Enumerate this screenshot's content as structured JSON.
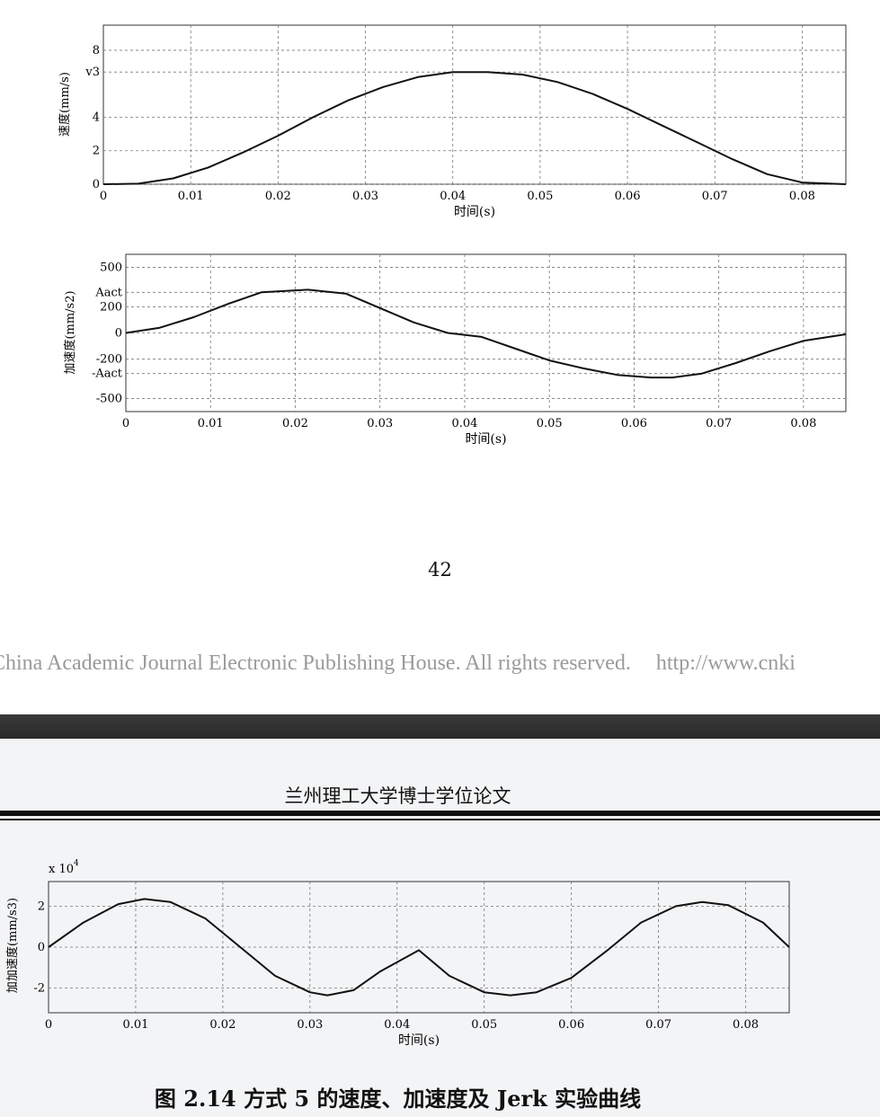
{
  "page_number": "42",
  "footer": {
    "copyright": "China Academic Journal Electronic Publishing House. All rights reserved.",
    "url": "http://www.cnki"
  },
  "header": {
    "title": "兰州理工大学博士学位论文"
  },
  "caption": "图 2.14  方式 5 的速度、加速度及 Jerk 实验曲线",
  "chart_data": [
    {
      "type": "line",
      "title": "",
      "xlabel": "时间(s)",
      "ylabel": "速度(mm/s)",
      "xlim": [
        0,
        0.085
      ],
      "ylim": [
        0,
        9.5
      ],
      "x_ticks": [
        0,
        0.01,
        0.02,
        0.03,
        0.04,
        0.05,
        0.06,
        0.07,
        0.08
      ],
      "x_tick_labels": [
        "0",
        "0.01",
        "0.02",
        "0.03",
        "0.04",
        "0.05",
        "0.06",
        "0.07",
        "0.08"
      ],
      "y_ticks": [
        {
          "value": 0,
          "label": "0"
        },
        {
          "value": 2,
          "label": "2"
        },
        {
          "value": 4,
          "label": "4"
        },
        {
          "value": 6.7,
          "label": "v3"
        },
        {
          "value": 8,
          "label": "8"
        }
      ],
      "grid": true,
      "series": [
        {
          "x": [
            0,
            0.004,
            0.008,
            0.012,
            0.016,
            0.02,
            0.024,
            0.028,
            0.032,
            0.036,
            0.04,
            0.044,
            0.048,
            0.052,
            0.056,
            0.06,
            0.064,
            0.068,
            0.072,
            0.076,
            0.08,
            0.085
          ],
          "values": [
            0,
            0.03,
            0.35,
            1.0,
            1.9,
            2.9,
            4.0,
            5.0,
            5.8,
            6.4,
            6.7,
            6.7,
            6.55,
            6.1,
            5.4,
            4.5,
            3.5,
            2.5,
            1.5,
            0.6,
            0.1,
            0
          ]
        }
      ]
    },
    {
      "type": "line",
      "title": "",
      "xlabel": "时间(s)",
      "ylabel": "加速度(mm/s2)",
      "xlim": [
        0,
        0.085
      ],
      "ylim": [
        -600,
        600
      ],
      "x_ticks": [
        0,
        0.01,
        0.02,
        0.03,
        0.04,
        0.05,
        0.06,
        0.07,
        0.08
      ],
      "x_tick_labels": [
        "0",
        "0.01",
        "0.02",
        "0.03",
        "0.04",
        "0.05",
        "0.06",
        "0.07",
        "0.08"
      ],
      "y_ticks": [
        {
          "value": 500,
          "label": "500"
        },
        {
          "value": 310,
          "label": "Aact"
        },
        {
          "value": 200,
          "label": "200"
        },
        {
          "value": 0,
          "label": "0"
        },
        {
          "value": -200,
          "label": "-200"
        },
        {
          "value": -310,
          "label": "-Aact"
        },
        {
          "value": -500,
          "label": "-500"
        }
      ],
      "grid": true,
      "series": [
        {
          "x": [
            0,
            0.004,
            0.008,
            0.012,
            0.016,
            0.0215,
            0.026,
            0.03,
            0.034,
            0.038,
            0.042,
            0.046,
            0.05,
            0.054,
            0.058,
            0.062,
            0.0645,
            0.068,
            0.072,
            0.076,
            0.08,
            0.085
          ],
          "values": [
            0,
            40,
            120,
            220,
            310,
            330,
            300,
            190,
            80,
            0,
            -30,
            -120,
            -210,
            -270,
            -320,
            -340,
            -340,
            -310,
            -230,
            -140,
            -60,
            -10
          ]
        }
      ]
    },
    {
      "type": "line",
      "title": "",
      "xlabel": "时间(s)",
      "ylabel": "加加速度(mm/s3)",
      "y_scale_label": "x 10",
      "y_scale_exp": "4",
      "xlim": [
        0,
        0.085
      ],
      "ylim": [
        -3.2,
        3.2
      ],
      "x_ticks": [
        0,
        0.01,
        0.02,
        0.03,
        0.04,
        0.05,
        0.06,
        0.07,
        0.08
      ],
      "x_tick_labels": [
        "0",
        "0.01",
        "0.02",
        "0.03",
        "0.04",
        "0.05",
        "0.06",
        "0.07",
        "0.08"
      ],
      "y_ticks": [
        {
          "value": 2,
          "label": "2"
        },
        {
          "value": 0,
          "label": "0"
        },
        {
          "value": -2,
          "label": "-2"
        }
      ],
      "grid": true,
      "series": [
        {
          "x": [
            0,
            0.004,
            0.008,
            0.011,
            0.014,
            0.018,
            0.022,
            0.026,
            0.03,
            0.032,
            0.035,
            0.038,
            0.0425,
            0.046,
            0.05,
            0.053,
            0.056,
            0.06,
            0.064,
            0.068,
            0.072,
            0.075,
            0.078,
            0.082,
            0.085
          ],
          "values": [
            0,
            1.2,
            2.1,
            2.35,
            2.2,
            1.4,
            0.0,
            -1.4,
            -2.2,
            -2.35,
            -2.1,
            -1.2,
            -0.15,
            -1.4,
            -2.2,
            -2.35,
            -2.2,
            -1.5,
            -0.2,
            1.2,
            2.0,
            2.2,
            2.05,
            1.2,
            0
          ]
        }
      ]
    }
  ]
}
